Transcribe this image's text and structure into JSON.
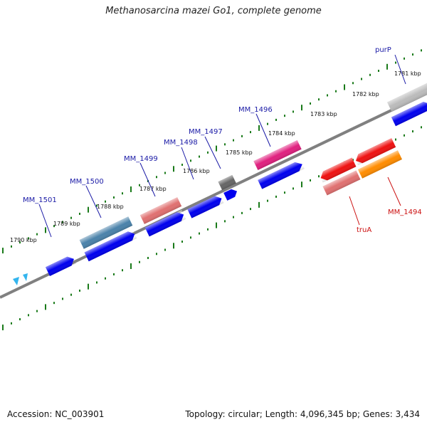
{
  "title": "Methanosarcina mazei Go1, complete genome",
  "footer": {
    "accession": "Accession: NC_003901",
    "stats": "Topology: circular; Length: 4,096,345 bp; Genes: 3,434"
  },
  "ticks": [
    "1781 kbp",
    "1782 kbp",
    "1783 kbp",
    "1784 kbp",
    "1785 kbp",
    "1786 kbp",
    "1787 kbp",
    "1788 kbp",
    "1789 kbp",
    "1790 kbp"
  ],
  "gene_labels": {
    "purP": "purP",
    "MM_1496": "MM_1496",
    "MM_1497": "MM_1497",
    "MM_1498": "MM_1498",
    "MM_1499": "MM_1499",
    "MM_1500": "MM_1500",
    "MM_1501": "MM_1501",
    "truA": "truA",
    "MM_1494": "MM_1494"
  },
  "colors": {
    "label_forward": "#1a1aa6",
    "label_reverse": "#cc1111",
    "backbone": "#808080",
    "tick_mark": "#1a7a1a",
    "cds": "#0000ee",
    "gene_pink": "#e07070",
    "gene_magenta": "#e0207f",
    "gene_steel": "#4a82aa",
    "gene_gray": "#666666",
    "gene_red": "#ee1111",
    "gene_orange": "#ff8c00",
    "gene_lightgray": "#bbbbbb",
    "gene_cyan": "#33b5ee"
  }
}
